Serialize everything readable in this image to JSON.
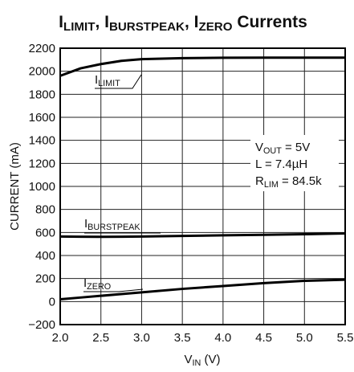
{
  "chart_data": {
    "type": "line",
    "title": [
      {
        "text": "I"
      },
      {
        "text": "LIMIT",
        "sub": true
      },
      {
        "text": ", I"
      },
      {
        "text": "BURSTPEAK",
        "sub": true
      },
      {
        "text": ", I"
      },
      {
        "text": "ZERO",
        "sub": true
      },
      {
        "text": " Currents"
      }
    ],
    "x_label": [
      {
        "text": "V"
      },
      {
        "text": "IN",
        "sub": true
      },
      {
        "text": " (V)"
      }
    ],
    "y_label": "CURRENT (mA)",
    "x": [
      2.0,
      2.25,
      2.5,
      2.75,
      3.0,
      3.5,
      4.0,
      4.5,
      5.0,
      5.5
    ],
    "series": [
      {
        "name": [
          {
            "text": "I"
          },
          {
            "text": "LIMIT",
            "sub": true
          }
        ],
        "color": "#000000",
        "values": [
          1960,
          2025,
          2062,
          2090,
          2105,
          2114,
          2117,
          2118,
          2118,
          2118
        ]
      },
      {
        "name": [
          {
            "text": "I"
          },
          {
            "text": "BURSTPEAK",
            "sub": true
          }
        ],
        "color": "#000000",
        "values": [
          565,
          563,
          562,
          563,
          565,
          570,
          575,
          580,
          585,
          592
        ]
      },
      {
        "name": [
          {
            "text": "I"
          },
          {
            "text": "ZERO",
            "sub": true
          }
        ],
        "color": "#000000",
        "values": [
          20,
          35,
          50,
          65,
          80,
          110,
          135,
          160,
          180,
          190
        ]
      }
    ],
    "annotations": [
      [
        {
          "text": "V"
        },
        {
          "text": "OUT",
          "sub": true
        },
        {
          "text": " = 5V"
        }
      ],
      [
        {
          "text": "L = 7.4µH"
        }
      ],
      [
        {
          "text": "R"
        },
        {
          "text": "LIM",
          "sub": true
        },
        {
          "text": " = 84.5k"
        }
      ]
    ],
    "xlim": [
      2.0,
      5.5
    ],
    "xticks": [
      {
        "value": 2.0,
        "label": "2.0"
      },
      2.5,
      {
        "value": 3.0,
        "label": "3.0"
      },
      3.5,
      {
        "value": 4.0,
        "label": "4.0"
      },
      4.5,
      {
        "value": 5.0,
        "label": "5.0"
      },
      5.5
    ],
    "ylim": [
      -200,
      2200
    ],
    "yticks": [
      {
        "value": -200,
        "label": "−200"
      },
      0,
      200,
      400,
      600,
      800,
      1000,
      1200,
      1400,
      1600,
      1800,
      2000,
      2200
    ],
    "grid": true
  }
}
